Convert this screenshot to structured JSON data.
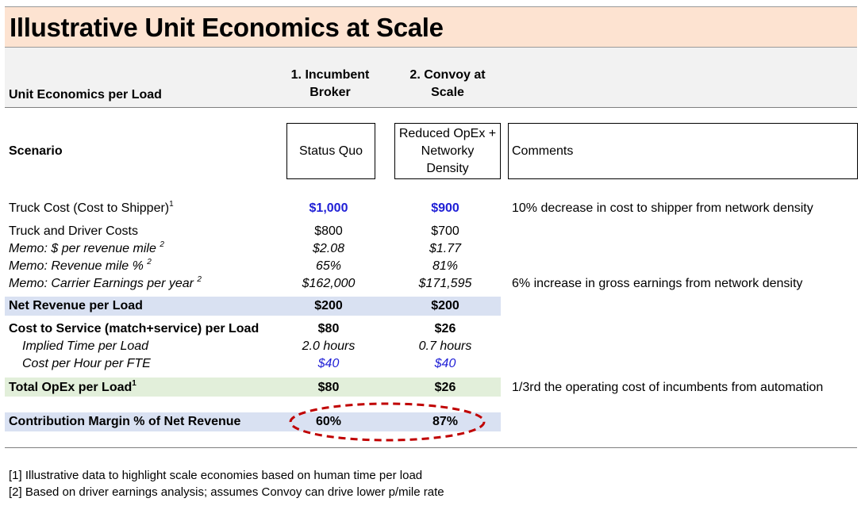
{
  "title": "Illustrative Unit Economics at Scale",
  "header": {
    "row_label": "Unit Economics per Load",
    "col1": "1. Incumbent Broker",
    "col2": "2. Convoy at Scale"
  },
  "scenario": {
    "label": "Scenario",
    "col1": "Status Quo",
    "col2": "Reduced OpEx + Networky Density",
    "comments_label": "Comments"
  },
  "rows": {
    "truck_cost": {
      "label": "Truck Cost (Cost to Shipper)",
      "sup": "1",
      "v1": "$1,000",
      "v2": "$900",
      "comment": "10% decrease in cost to shipper from network density"
    },
    "truck_driver": {
      "label": "Truck and Driver Costs",
      "v1": "$800",
      "v2": "$700"
    },
    "memo_per_mile": {
      "label": "Memo: $ per revenue mile",
      "sup": "2",
      "v1": "$2.08",
      "v2": "$1.77"
    },
    "memo_rev_pct": {
      "label": "Memo: Revenue mile %",
      "sup": "2",
      "v1": "65%",
      "v2": "81%"
    },
    "memo_carrier": {
      "label": "Memo: Carrier Earnings per year",
      "sup": "2",
      "v1": "$162,000",
      "v2": "$171,595",
      "comment": "6% increase in gross earnings from network density"
    },
    "net_revenue": {
      "label": "Net Revenue per Load",
      "v1": "$200",
      "v2": "$200"
    },
    "cost_service": {
      "label": "Cost to Service (match+service) per Load",
      "v1": "$80",
      "v2": "$26"
    },
    "implied_time": {
      "label": "Implied Time per Load",
      "v1": "2.0 hours",
      "v2": "0.7 hours"
    },
    "cost_hour": {
      "label": "Cost per Hour per FTE",
      "v1": "$40",
      "v2": "$40"
    },
    "total_opex": {
      "label": "Total OpEx per Load",
      "sup": "1",
      "v1": "$80",
      "v2": "$26",
      "comment": "1/3rd the operating cost of incumbents from automation"
    },
    "contribution": {
      "label": "Contribution Margin % of Net Revenue",
      "v1": "60%",
      "v2": "87%"
    }
  },
  "footnotes": [
    "[1] Illustrative data to highlight scale economies based on human time per load",
    "[2] Based on driver earnings analysis; assumes Convoy can drive lower p/mile rate"
  ],
  "colors": {
    "title_bg": "#fde3d1",
    "blue_band": "#d9e1f2",
    "green_band": "#e2efda",
    "blue_text": "#1f1fd6",
    "highlight_ellipse": "#c00000"
  }
}
